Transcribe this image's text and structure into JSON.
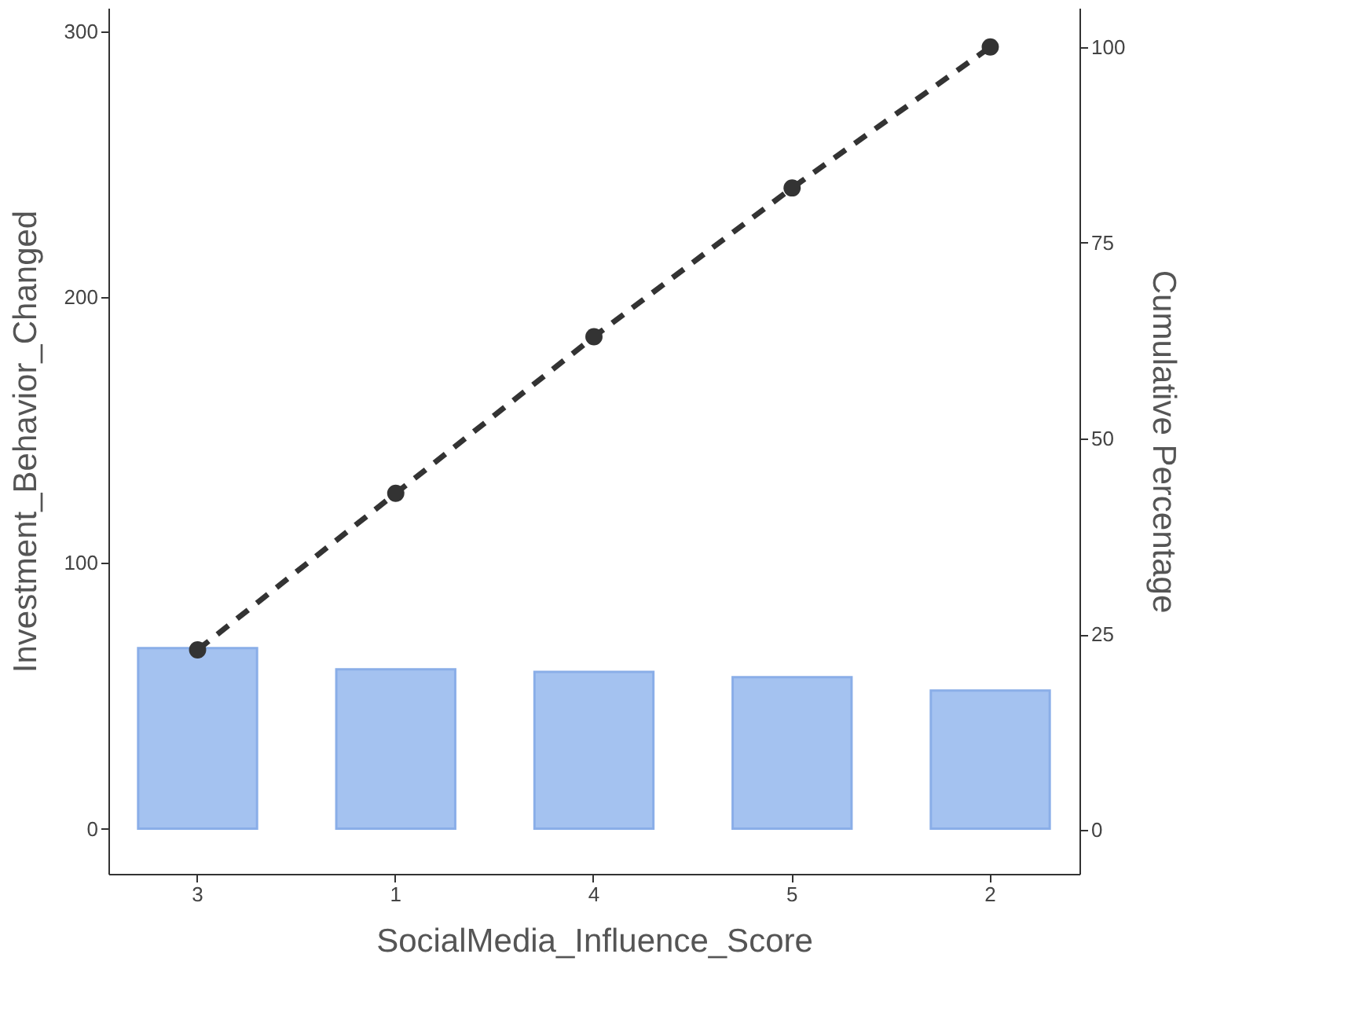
{
  "chart_data": {
    "type": "bar",
    "xlabel": "SocialMedia_Influence_Score",
    "ylabel": "Investment_Behavior_Changed",
    "y2label": "Cumulative Percentage",
    "categories": [
      "3",
      "1",
      "4",
      "5",
      "2"
    ],
    "series": [
      {
        "color": "#a4c2f0",
        "values": [
          68,
          60,
          59,
          57,
          52
        ]
      },
      {
        "type": "line",
        "axis": "y2",
        "color": "#333333",
        "values": [
          23,
          43,
          63,
          82,
          100
        ]
      }
    ],
    "marker": "circle",
    "line_style": "dashed",
    "ylim": [
      -17,
      309
    ],
    "yticks": [
      0,
      100,
      200,
      300
    ],
    "y2lim": [
      -5.6,
      105
    ],
    "y2ticks": [
      0,
      25,
      50,
      75,
      100
    ],
    "grid": false
  }
}
